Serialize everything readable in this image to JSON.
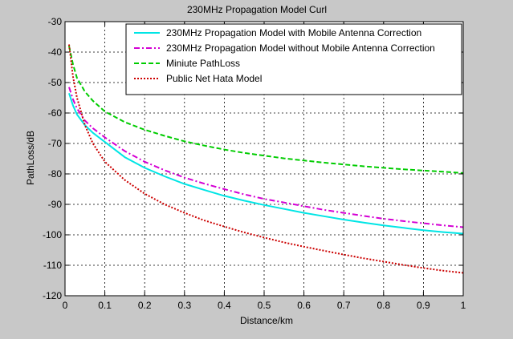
{
  "chart_data": {
    "type": "line",
    "title": "230MHz Propagation Model Curl",
    "xlabel": "Distance/km",
    "ylabel": "PathLoss/dB",
    "xlim": [
      0,
      1
    ],
    "ylim": [
      -120,
      -30
    ],
    "xticks": [
      0,
      0.1,
      0.2,
      0.3,
      0.4,
      0.5,
      0.6,
      0.7,
      0.8,
      0.9,
      1
    ],
    "xtick_labels": [
      "0",
      "0.1",
      "0.2",
      "0.3",
      "0.4",
      "0.5",
      "0.6",
      "0.7",
      "0.8",
      "0.9",
      "1"
    ],
    "yticks": [
      -120,
      -110,
      -100,
      -90,
      -80,
      -70,
      -60,
      -50,
      -40,
      -30
    ],
    "ytick_labels": [
      "-120",
      "-110",
      "-100",
      "-90",
      "-80",
      "-70",
      "-60",
      "-50",
      "-40",
      "-30"
    ],
    "grid": true,
    "legend_position": "top-right",
    "x": [
      0.01,
      0.02,
      0.03,
      0.05,
      0.07,
      0.1,
      0.15,
      0.2,
      0.25,
      0.3,
      0.35,
      0.4,
      0.45,
      0.5,
      0.55,
      0.6,
      0.65,
      0.7,
      0.75,
      0.8,
      0.85,
      0.9,
      0.95,
      1.0
    ],
    "series": [
      {
        "name": "230MHz Propagation Model with Mobile Antenna Correction",
        "color": "#00e5e5",
        "dash": "solid",
        "values": [
          -53.5,
          -57.5,
          -60.5,
          -64,
          -66.5,
          -69.5,
          -74.5,
          -78,
          -80.8,
          -83.3,
          -85.3,
          -87.2,
          -88.8,
          -90.2,
          -91.5,
          -92.8,
          -93.9,
          -95,
          -96,
          -96.9,
          -97.7,
          -98.5,
          -99.1,
          -99.6
        ]
      },
      {
        "name": "230MHz Propagation Model without Mobile Antenna Correction",
        "color": "#d400d4",
        "dash": "dashdot",
        "values": [
          -51.5,
          -55.5,
          -58.5,
          -62.5,
          -65,
          -68,
          -72.5,
          -76,
          -78.8,
          -81.2,
          -83.2,
          -85,
          -86.7,
          -88.2,
          -89.4,
          -90.6,
          -91.8,
          -92.8,
          -93.8,
          -94.7,
          -95.5,
          -96.2,
          -96.9,
          -97.5
        ]
      },
      {
        "name": "Miniute PathLoss",
        "color": "#00cc00",
        "dash": "dashed",
        "values": [
          -38,
          -44,
          -48.5,
          -53,
          -56,
          -59.5,
          -63,
          -65.5,
          -67.5,
          -69.3,
          -70.7,
          -72,
          -73.1,
          -74,
          -74.9,
          -75.6,
          -76.3,
          -76.9,
          -77.5,
          -78,
          -78.5,
          -78.9,
          -79.3,
          -79.7
        ]
      },
      {
        "name": "Public Net Hata Model",
        "color": "#cc0000",
        "dash": "dotted",
        "values": [
          -37.5,
          -48,
          -55,
          -64,
          -70,
          -76,
          -82,
          -86.5,
          -90,
          -92.8,
          -95.3,
          -97.3,
          -99.2,
          -100.9,
          -102.5,
          -103.9,
          -105.2,
          -106.5,
          -107.7,
          -108.8,
          -109.9,
          -110.9,
          -111.8,
          -112.5
        ]
      }
    ]
  }
}
